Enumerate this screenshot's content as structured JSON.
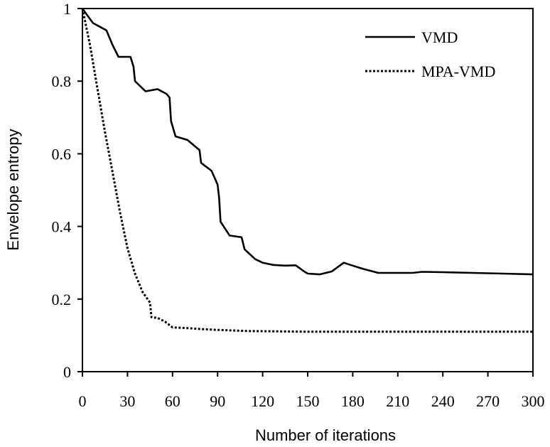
{
  "chart_data": {
    "type": "line",
    "title": "",
    "xlabel": "Number of iterations",
    "ylabel": "Envelope entropy",
    "xlim": [
      0,
      300
    ],
    "ylim": [
      0,
      1
    ],
    "xticks": [
      0,
      30,
      60,
      90,
      120,
      150,
      180,
      210,
      240,
      270,
      300
    ],
    "yticks": [
      0,
      0.2,
      0.4,
      0.6,
      0.8,
      1
    ],
    "ytick_labels": [
      "0",
      "0.2",
      "0.4",
      "0.6",
      "0.8",
      "1"
    ],
    "legend_position": "top-right",
    "grid": false,
    "series": [
      {
        "name": "VMD",
        "style": "solid",
        "points": [
          [
            0,
            1.0
          ],
          [
            7,
            0.96
          ],
          [
            16,
            0.94
          ],
          [
            20,
            0.9
          ],
          [
            24,
            0.867
          ],
          [
            32,
            0.867
          ],
          [
            34,
            0.84
          ],
          [
            35,
            0.8
          ],
          [
            42,
            0.772
          ],
          [
            50,
            0.778
          ],
          [
            56,
            0.765
          ],
          [
            58,
            0.755
          ],
          [
            59,
            0.69
          ],
          [
            62,
            0.648
          ],
          [
            70,
            0.638
          ],
          [
            78,
            0.61
          ],
          [
            79,
            0.575
          ],
          [
            86,
            0.553
          ],
          [
            90,
            0.515
          ],
          [
            91,
            0.48
          ],
          [
            92,
            0.413
          ],
          [
            98,
            0.375
          ],
          [
            106,
            0.37
          ],
          [
            108,
            0.337
          ],
          [
            115,
            0.31
          ],
          [
            120,
            0.3
          ],
          [
            127,
            0.294
          ],
          [
            135,
            0.292
          ],
          [
            142,
            0.293
          ],
          [
            148,
            0.275
          ],
          [
            150,
            0.27
          ],
          [
            158,
            0.268
          ],
          [
            166,
            0.276
          ],
          [
            174,
            0.3
          ],
          [
            180,
            0.292
          ],
          [
            187,
            0.283
          ],
          [
            197,
            0.272
          ],
          [
            205,
            0.272
          ],
          [
            220,
            0.272
          ],
          [
            226,
            0.275
          ],
          [
            240,
            0.274
          ],
          [
            260,
            0.272
          ],
          [
            280,
            0.27
          ],
          [
            300,
            0.268
          ]
        ]
      },
      {
        "name": "MPA-VMD",
        "style": "dotted",
        "points": [
          [
            0,
            1.0
          ],
          [
            5,
            0.9
          ],
          [
            10,
            0.78
          ],
          [
            15,
            0.66
          ],
          [
            20,
            0.55
          ],
          [
            25,
            0.44
          ],
          [
            30,
            0.34
          ],
          [
            35,
            0.27
          ],
          [
            40,
            0.22
          ],
          [
            45,
            0.19
          ],
          [
            46,
            0.15
          ],
          [
            50,
            0.148
          ],
          [
            55,
            0.138
          ],
          [
            60,
            0.122
          ],
          [
            70,
            0.12
          ],
          [
            80,
            0.117
          ],
          [
            90,
            0.115
          ],
          [
            110,
            0.112
          ],
          [
            150,
            0.11
          ],
          [
            200,
            0.11
          ],
          [
            250,
            0.11
          ],
          [
            300,
            0.11
          ]
        ]
      }
    ]
  }
}
